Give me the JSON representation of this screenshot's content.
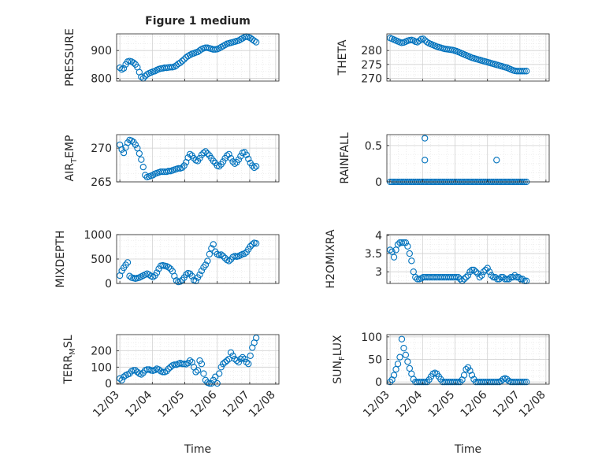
{
  "figure": {
    "title": "Figure 1 medium",
    "time_label": "Time",
    "x_tick_labels": [
      "12/03",
      "12/04",
      "12/05",
      "12/06",
      "12/07",
      "12/08"
    ],
    "marker_color": "#0072BD",
    "grid_color": "#d0d0d0",
    "axis_color": "#262626"
  },
  "chart_data": [
    {
      "type": "scatter",
      "id": "pressure",
      "ylabel": "PRESSURE",
      "ylim": [
        790,
        960
      ],
      "yticks": [
        800,
        900
      ],
      "ytick_labels": [
        "800",
        "900"
      ],
      "x": [
        0.0,
        0.06,
        0.12,
        0.18,
        0.24,
        0.3,
        0.36,
        0.42,
        0.48,
        0.54,
        0.6,
        0.66,
        0.72,
        0.78,
        0.84,
        0.9,
        0.96,
        1.02,
        1.08,
        1.14,
        1.2,
        1.26,
        1.32,
        1.38,
        1.44,
        1.5,
        1.56,
        1.62,
        1.68,
        1.74,
        1.8,
        1.86,
        1.92,
        1.98,
        2.04,
        2.1,
        2.16,
        2.22,
        2.28,
        2.34,
        2.4,
        2.46,
        2.52,
        2.58,
        2.64,
        2.7,
        2.76,
        2.82,
        2.88,
        2.94,
        3.0,
        3.06,
        3.12,
        3.18,
        3.24,
        3.3,
        3.36,
        3.42,
        3.48,
        3.54,
        3.6,
        3.66,
        3.72,
        3.78,
        3.84,
        3.9,
        3.96,
        4.02,
        4.08,
        4.14,
        4.2
      ],
      "values": [
        838,
        832,
        836,
        850,
        860,
        862,
        860,
        856,
        850,
        840,
        822,
        805,
        800,
        808,
        814,
        818,
        821,
        824,
        826,
        830,
        833,
        835,
        836,
        838,
        838,
        839,
        840,
        840,
        842,
        846,
        852,
        856,
        862,
        868,
        875,
        880,
        884,
        888,
        890,
        893,
        895,
        900,
        905,
        908,
        910,
        910,
        908,
        906,
        904,
        904,
        905,
        908,
        912,
        916,
        920,
        924,
        926,
        928,
        930,
        932,
        934,
        936,
        940,
        944,
        948,
        950,
        948,
        945,
        940,
        935,
        930
      ]
    },
    {
      "type": "scatter",
      "id": "theta",
      "ylabel": "THETA",
      "ylim": [
        269,
        286
      ],
      "yticks": [
        270,
        275,
        280
      ],
      "ytick_labels": [
        "270",
        "275",
        "280"
      ],
      "x": [
        0.0,
        0.06,
        0.12,
        0.18,
        0.24,
        0.3,
        0.36,
        0.42,
        0.48,
        0.54,
        0.6,
        0.66,
        0.72,
        0.78,
        0.84,
        0.9,
        0.96,
        1.02,
        1.08,
        1.14,
        1.2,
        1.26,
        1.32,
        1.38,
        1.44,
        1.5,
        1.56,
        1.62,
        1.68,
        1.74,
        1.8,
        1.86,
        1.92,
        1.98,
        2.04,
        2.1,
        2.16,
        2.22,
        2.28,
        2.34,
        2.4,
        2.46,
        2.52,
        2.58,
        2.64,
        2.7,
        2.76,
        2.82,
        2.88,
        2.94,
        3.0,
        3.06,
        3.12,
        3.18,
        3.24,
        3.3,
        3.36,
        3.42,
        3.48,
        3.54,
        3.6,
        3.66,
        3.72,
        3.78,
        3.84,
        3.9,
        3.96,
        4.02,
        4.08,
        4.14,
        4.2
      ],
      "values": [
        284.5,
        284.2,
        283.9,
        283.6,
        283.3,
        283.0,
        282.8,
        282.9,
        283.2,
        283.5,
        283.7,
        283.8,
        283.6,
        283.2,
        283.0,
        283.5,
        284.1,
        284.2,
        283.6,
        283.0,
        282.6,
        282.3,
        282.0,
        281.7,
        281.4,
        281.2,
        281.0,
        280.8,
        280.6,
        280.5,
        280.4,
        280.3,
        280.2,
        280.0,
        279.8,
        279.5,
        279.2,
        278.9,
        278.6,
        278.3,
        278.0,
        277.7,
        277.4,
        277.2,
        277.0,
        276.8,
        276.6,
        276.4,
        276.2,
        276.0,
        275.8,
        275.6,
        275.4,
        275.2,
        275.0,
        274.8,
        274.6,
        274.4,
        274.2,
        274.0,
        273.8,
        273.5,
        273.2,
        272.9,
        272.7,
        272.6,
        272.6,
        272.6,
        272.6,
        272.6,
        272.6
      ]
    },
    {
      "type": "scatter",
      "id": "air_temp",
      "ylabel": "AIR_TEMP",
      "ylim": [
        265,
        272
      ],
      "yticks": [
        265,
        270
      ],
      "ytick_labels": [
        "265",
        "270"
      ],
      "x": [
        0.0,
        0.06,
        0.12,
        0.18,
        0.24,
        0.3,
        0.36,
        0.42,
        0.48,
        0.54,
        0.6,
        0.66,
        0.72,
        0.78,
        0.84,
        0.9,
        0.96,
        1.02,
        1.08,
        1.14,
        1.2,
        1.26,
        1.32,
        1.38,
        1.44,
        1.5,
        1.56,
        1.62,
        1.68,
        1.74,
        1.8,
        1.86,
        1.92,
        1.98,
        2.04,
        2.1,
        2.16,
        2.22,
        2.28,
        2.34,
        2.4,
        2.46,
        2.52,
        2.58,
        2.64,
        2.7,
        2.76,
        2.82,
        2.88,
        2.94,
        3.0,
        3.06,
        3.12,
        3.18,
        3.24,
        3.3,
        3.36,
        3.42,
        3.48,
        3.54,
        3.6,
        3.66,
        3.72,
        3.78,
        3.84,
        3.9,
        3.96,
        4.02,
        4.08,
        4.14,
        4.2
      ],
      "values": [
        270.5,
        269.8,
        269.3,
        270.1,
        270.8,
        271.2,
        271.1,
        270.9,
        270.5,
        270.0,
        269.2,
        268.3,
        267.2,
        266.0,
        265.7,
        265.8,
        265.9,
        266.0,
        266.2,
        266.3,
        266.4,
        266.5,
        266.5,
        266.5,
        266.5,
        266.6,
        266.6,
        266.7,
        266.8,
        266.9,
        267.0,
        267.0,
        267.1,
        267.4,
        267.9,
        268.6,
        269.1,
        268.9,
        268.5,
        268.2,
        268.1,
        268.5,
        269.0,
        269.3,
        269.5,
        269.2,
        268.9,
        268.5,
        268.1,
        267.8,
        267.4,
        267.3,
        267.6,
        268.0,
        268.5,
        268.9,
        269.1,
        268.5,
        268.0,
        267.7,
        267.9,
        268.3,
        268.8,
        269.3,
        269.4,
        269.0,
        268.4,
        267.8,
        267.4,
        267.1,
        267.3
      ]
    },
    {
      "type": "scatter",
      "id": "rainfall",
      "ylabel": "RAINFALL",
      "ylim": [
        0,
        0.65
      ],
      "yticks": [
        0,
        0.5
      ],
      "ytick_labels": [
        "0",
        "0.5"
      ],
      "x": [
        0.0,
        0.06,
        0.12,
        0.18,
        0.24,
        0.3,
        0.36,
        0.42,
        0.48,
        0.54,
        0.6,
        0.66,
        0.72,
        0.78,
        0.84,
        0.9,
        0.96,
        1.02,
        1.08,
        1.14,
        1.2,
        1.26,
        1.32,
        1.38,
        1.44,
        1.5,
        1.56,
        1.62,
        1.68,
        1.74,
        1.8,
        1.86,
        1.92,
        1.98,
        2.04,
        2.1,
        2.16,
        2.22,
        2.28,
        2.34,
        2.4,
        2.46,
        2.52,
        2.58,
        2.64,
        2.7,
        2.76,
        2.82,
        2.88,
        2.94,
        3.0,
        3.06,
        3.12,
        3.18,
        3.24,
        3.3,
        3.36,
        3.42,
        3.48,
        3.54,
        3.6,
        3.66,
        3.72,
        3.78,
        3.84,
        3.9,
        3.96,
        4.02,
        4.08,
        4.14,
        4.2,
        1.07,
        1.07,
        3.28
      ],
      "values": [
        0,
        0,
        0,
        0,
        0,
        0,
        0,
        0,
        0,
        0,
        0,
        0,
        0,
        0,
        0,
        0,
        0,
        0,
        0,
        0,
        0,
        0,
        0,
        0,
        0,
        0,
        0,
        0,
        0,
        0,
        0,
        0,
        0,
        0,
        0,
        0,
        0,
        0,
        0,
        0,
        0,
        0,
        0,
        0,
        0,
        0,
        0,
        0,
        0,
        0,
        0,
        0,
        0,
        0,
        0,
        0,
        0,
        0,
        0,
        0,
        0,
        0,
        0,
        0,
        0,
        0,
        0,
        0,
        0,
        0,
        0,
        0.6,
        0.3,
        0.3
      ]
    },
    {
      "type": "scatter",
      "id": "mixdepth",
      "ylabel": "MIXDEPTH",
      "ylim": [
        0,
        1000
      ],
      "yticks": [
        0,
        500,
        1000
      ],
      "ytick_labels": [
        "0",
        "500",
        "1000"
      ],
      "x": [
        0.0,
        0.06,
        0.12,
        0.18,
        0.24,
        0.3,
        0.36,
        0.42,
        0.48,
        0.54,
        0.6,
        0.66,
        0.72,
        0.78,
        0.84,
        0.9,
        0.96,
        1.02,
        1.08,
        1.14,
        1.2,
        1.26,
        1.32,
        1.38,
        1.44,
        1.5,
        1.56,
        1.62,
        1.68,
        1.74,
        1.8,
        1.86,
        1.92,
        1.98,
        2.04,
        2.1,
        2.16,
        2.22,
        2.28,
        2.34,
        2.4,
        2.46,
        2.52,
        2.58,
        2.64,
        2.7,
        2.76,
        2.82,
        2.88,
        2.94,
        3.0,
        3.06,
        3.12,
        3.18,
        3.24,
        3.3,
        3.36,
        3.42,
        3.48,
        3.54,
        3.6,
        3.66,
        3.72,
        3.78,
        3.84,
        3.9,
        3.96,
        4.02,
        4.08,
        4.14,
        4.2
      ],
      "values": [
        160,
        260,
        320,
        380,
        430,
        150,
        120,
        110,
        100,
        110,
        120,
        140,
        160,
        180,
        200,
        180,
        150,
        130,
        160,
        220,
        300,
        360,
        370,
        360,
        350,
        330,
        300,
        250,
        150,
        60,
        30,
        40,
        70,
        120,
        180,
        210,
        200,
        150,
        70,
        50,
        120,
        180,
        260,
        330,
        380,
        460,
        600,
        720,
        800,
        650,
        600,
        580,
        590,
        560,
        520,
        480,
        460,
        490,
        540,
        560,
        550,
        560,
        580,
        600,
        610,
        640,
        700,
        760,
        800,
        830,
        820
      ]
    },
    {
      "type": "scatter",
      "id": "h2omixra",
      "ylabel": "H2OMIXRA",
      "ylim": [
        2.68,
        4.02
      ],
      "yticks": [
        3,
        3.5,
        4
      ],
      "ytick_labels": [
        "3",
        "3.5",
        "4"
      ],
      "x": [
        0.0,
        0.06,
        0.12,
        0.18,
        0.24,
        0.3,
        0.36,
        0.42,
        0.48,
        0.54,
        0.6,
        0.66,
        0.72,
        0.78,
        0.84,
        0.9,
        0.96,
        1.02,
        1.08,
        1.14,
        1.2,
        1.26,
        1.32,
        1.38,
        1.44,
        1.5,
        1.56,
        1.62,
        1.68,
        1.74,
        1.8,
        1.86,
        1.92,
        1.98,
        2.04,
        2.1,
        2.16,
        2.22,
        2.28,
        2.34,
        2.4,
        2.46,
        2.52,
        2.58,
        2.64,
        2.7,
        2.76,
        2.82,
        2.88,
        2.94,
        3.0,
        3.06,
        3.12,
        3.18,
        3.24,
        3.3,
        3.36,
        3.42,
        3.48,
        3.54,
        3.6,
        3.66,
        3.72,
        3.78,
        3.84,
        3.9,
        3.96,
        4.02,
        4.08,
        4.14,
        4.2
      ],
      "values": [
        3.6,
        3.55,
        3.4,
        3.6,
        3.75,
        3.8,
        3.8,
        3.8,
        3.8,
        3.7,
        3.5,
        3.3,
        3.0,
        2.85,
        2.8,
        2.8,
        2.82,
        2.85,
        2.85,
        2.85,
        2.85,
        2.85,
        2.85,
        2.85,
        2.85,
        2.85,
        2.85,
        2.85,
        2.85,
        2.85,
        2.85,
        2.85,
        2.85,
        2.85,
        2.85,
        2.85,
        2.8,
        2.75,
        2.8,
        2.85,
        2.9,
        3.0,
        3.05,
        3.05,
        3.0,
        2.95,
        2.85,
        2.9,
        3.0,
        3.05,
        3.1,
        3.0,
        2.9,
        2.85,
        2.85,
        2.8,
        2.8,
        2.85,
        2.85,
        2.8,
        2.8,
        2.8,
        2.85,
        2.85,
        2.9,
        2.85,
        2.85,
        2.8,
        2.8,
        2.75,
        2.75
      ]
    },
    {
      "type": "scatter",
      "id": "terr_msl",
      "ylabel": "TERR_MSL",
      "ylim": [
        -5,
        300
      ],
      "yticks": [
        0,
        100,
        200
      ],
      "ytick_labels": [
        "0",
        "100",
        "200"
      ],
      "x": [
        0.0,
        0.06,
        0.12,
        0.18,
        0.24,
        0.3,
        0.36,
        0.42,
        0.48,
        0.54,
        0.6,
        0.66,
        0.72,
        0.78,
        0.84,
        0.9,
        0.96,
        1.02,
        1.08,
        1.14,
        1.2,
        1.26,
        1.32,
        1.38,
        1.44,
        1.5,
        1.56,
        1.62,
        1.68,
        1.74,
        1.8,
        1.86,
        1.92,
        1.98,
        2.04,
        2.1,
        2.16,
        2.22,
        2.28,
        2.34,
        2.4,
        2.46,
        2.52,
        2.58,
        2.64,
        2.7,
        2.76,
        2.82,
        2.88,
        2.94,
        3.0,
        3.06,
        3.12,
        3.18,
        3.24,
        3.3,
        3.36,
        3.42,
        3.48,
        3.54,
        3.6,
        3.66,
        3.72,
        3.78,
        3.84,
        3.9,
        3.96,
        4.02,
        4.08,
        4.14,
        4.2
      ],
      "values": [
        30,
        20,
        40,
        50,
        55,
        60,
        75,
        80,
        80,
        70,
        60,
        55,
        65,
        80,
        85,
        85,
        80,
        78,
        82,
        90,
        85,
        75,
        70,
        70,
        75,
        90,
        100,
        110,
        115,
        115,
        120,
        125,
        120,
        120,
        118,
        125,
        140,
        130,
        100,
        70,
        80,
        140,
        120,
        60,
        20,
        5,
        0,
        0,
        20,
        40,
        0,
        60,
        100,
        120,
        130,
        140,
        150,
        190,
        170,
        150,
        140,
        130,
        150,
        160,
        150,
        130,
        120,
        170,
        220,
        250,
        280
      ]
    },
    {
      "type": "scatter",
      "id": "sun_flux",
      "ylabel": "SUN_FLUX",
      "ylim": [
        -5,
        105
      ],
      "yticks": [
        0,
        50,
        100
      ],
      "ytick_labels": [
        "0",
        "50",
        "100"
      ],
      "x": [
        0.0,
        0.06,
        0.12,
        0.18,
        0.24,
        0.3,
        0.36,
        0.42,
        0.48,
        0.54,
        0.6,
        0.66,
        0.72,
        0.78,
        0.84,
        0.9,
        0.96,
        1.02,
        1.08,
        1.14,
        1.2,
        1.26,
        1.32,
        1.38,
        1.44,
        1.5,
        1.56,
        1.62,
        1.68,
        1.74,
        1.8,
        1.86,
        1.92,
        1.98,
        2.04,
        2.1,
        2.16,
        2.22,
        2.28,
        2.34,
        2.4,
        2.46,
        2.52,
        2.58,
        2.64,
        2.7,
        2.76,
        2.82,
        2.88,
        2.94,
        3.0,
        3.06,
        3.12,
        3.18,
        3.24,
        3.3,
        3.36,
        3.42,
        3.48,
        3.54,
        3.6,
        3.66,
        3.72,
        3.78,
        3.84,
        3.9,
        3.96,
        4.02,
        4.08,
        4.14,
        4.2
      ],
      "values": [
        0,
        5,
        15,
        28,
        40,
        55,
        95,
        75,
        60,
        45,
        30,
        18,
        6,
        0,
        0,
        0,
        0,
        0,
        0,
        0,
        5,
        12,
        18,
        20,
        18,
        12,
        6,
        0,
        0,
        0,
        0,
        0,
        0,
        0,
        0,
        0,
        0,
        5,
        15,
        28,
        32,
        25,
        15,
        6,
        0,
        0,
        0,
        0,
        0,
        0,
        0,
        0,
        0,
        0,
        0,
        0,
        0,
        2,
        6,
        8,
        6,
        2,
        0,
        0,
        0,
        0,
        0,
        0,
        0,
        0,
        0
      ]
    }
  ]
}
